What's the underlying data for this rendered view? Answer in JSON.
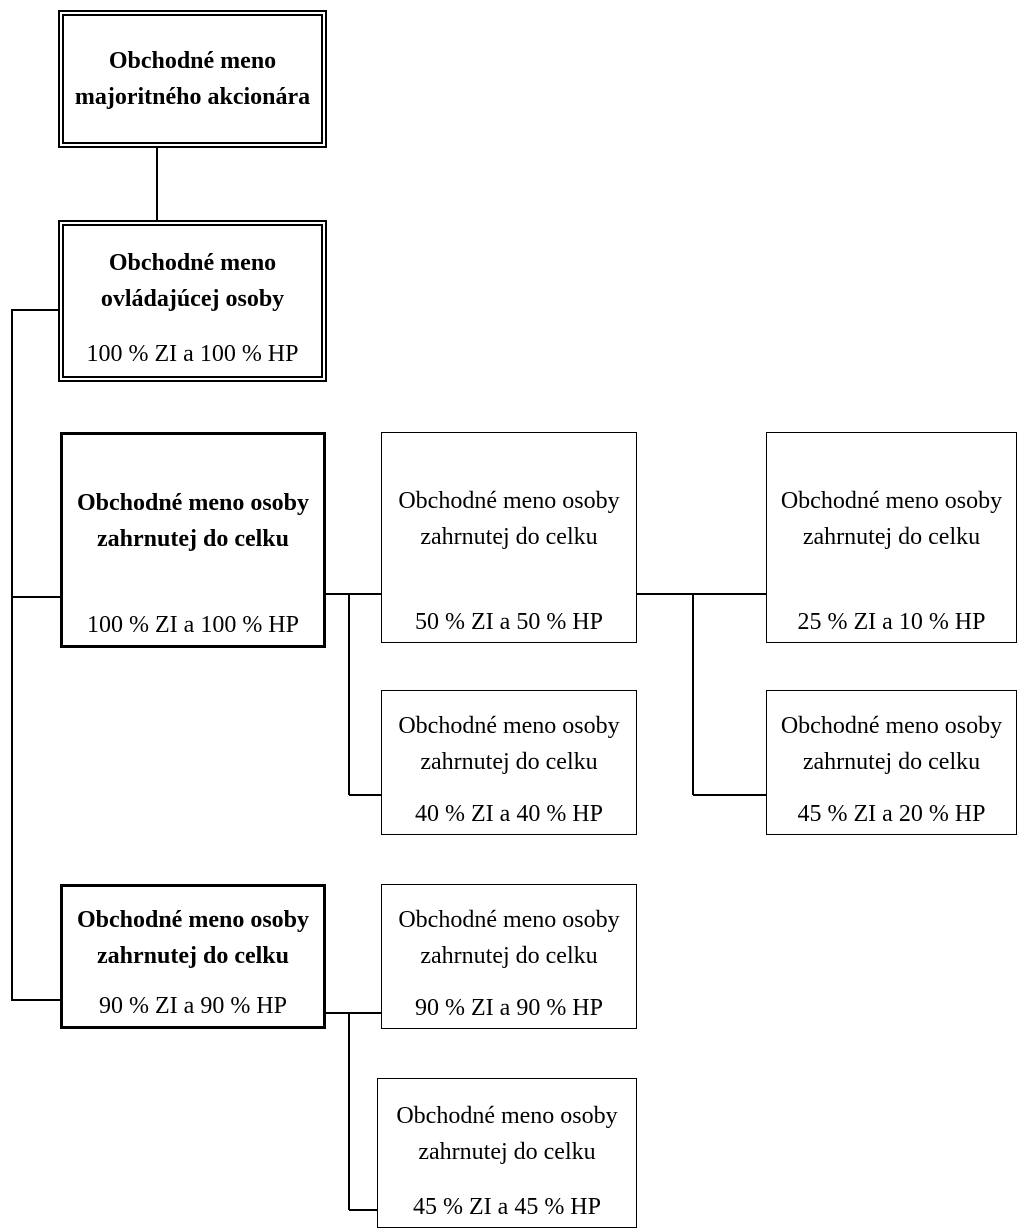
{
  "nodes": [
    {
      "name": "Obchodné meno majoritného akcionára"
    },
    {
      "name": "Obchodné meno ovládajúcej osoby",
      "share": "100 % ZI a 100 % HP"
    },
    {
      "name": "Obchodné meno osoby zahrnutej do celku",
      "share": "100 % ZI a 100 % HP"
    },
    {
      "name": "Obchodné meno osoby zahrnutej do celku",
      "share": "50 % ZI a 50 % HP"
    },
    {
      "name": "Obchodné meno osoby zahrnutej do celku",
      "share": "25 % ZI a 10 % HP"
    },
    {
      "name": "Obchodné meno osoby zahrnutej do celku",
      "share": "40 % ZI a 40 % HP"
    },
    {
      "name": "Obchodné meno osoby zahrnutej do celku",
      "share": "45 % ZI a 20 % HP"
    },
    {
      "name": "Obchodné meno osoby zahrnutej do celku",
      "share": "90 % ZI a 90 % HP"
    },
    {
      "name": "Obchodné meno osoby zahrnutej do celku",
      "share": "90 % ZI a 90 % HP"
    },
    {
      "name": "Obchodné meno osoby zahrnutej do celku",
      "share": "45 % ZI a 45 % HP"
    }
  ]
}
